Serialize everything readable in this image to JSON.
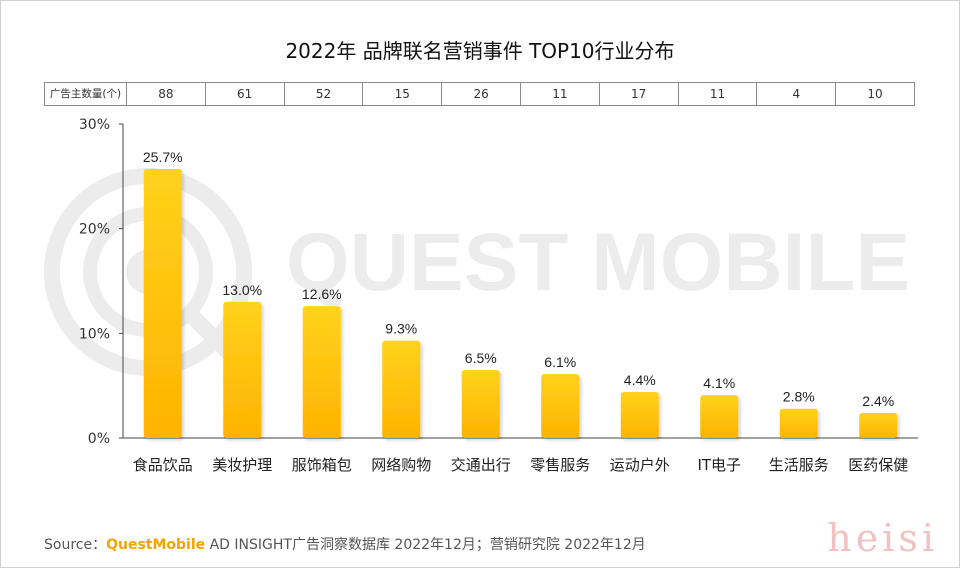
{
  "title": "2022年 品牌联名营销事件 TOP10行业分布",
  "advertiser_row": {
    "label": "广告主数量(个)",
    "counts": [
      "88",
      "61",
      "52",
      "15",
      "26",
      "11",
      "17",
      "11",
      "4",
      "10"
    ]
  },
  "chart_data": {
    "type": "bar",
    "categories": [
      "食品饮品",
      "美妆护理",
      "服饰箱包",
      "网络购物",
      "交通出行",
      "零售服务",
      "运动户外",
      "IT电子",
      "生活服务",
      "医药保健"
    ],
    "values": [
      25.7,
      13.0,
      12.6,
      9.3,
      6.5,
      6.1,
      4.4,
      4.1,
      2.8,
      2.4
    ],
    "value_labels": [
      "25.7%",
      "13.0%",
      "12.6%",
      "9.3%",
      "6.5%",
      "6.1%",
      "4.4%",
      "4.1%",
      "2.8%",
      "2.4%"
    ],
    "yticks": [
      0,
      10,
      20,
      30
    ],
    "ytick_labels": [
      "0%",
      "10%",
      "20%",
      "30%"
    ],
    "ylim": [
      0,
      30
    ],
    "grid": false,
    "bar_color_top": "#ffd21c",
    "bar_color_bottom": "#ffb300"
  },
  "source": {
    "prefix": "Source：",
    "brand": "QuestMobile",
    "rest": " AD INSIGHT广告洞察数据库 2022年12月；营销研究院 2022年12月"
  },
  "watermark": {
    "logo_text": "QUEST MOBILE",
    "corner_text": "heisi"
  }
}
